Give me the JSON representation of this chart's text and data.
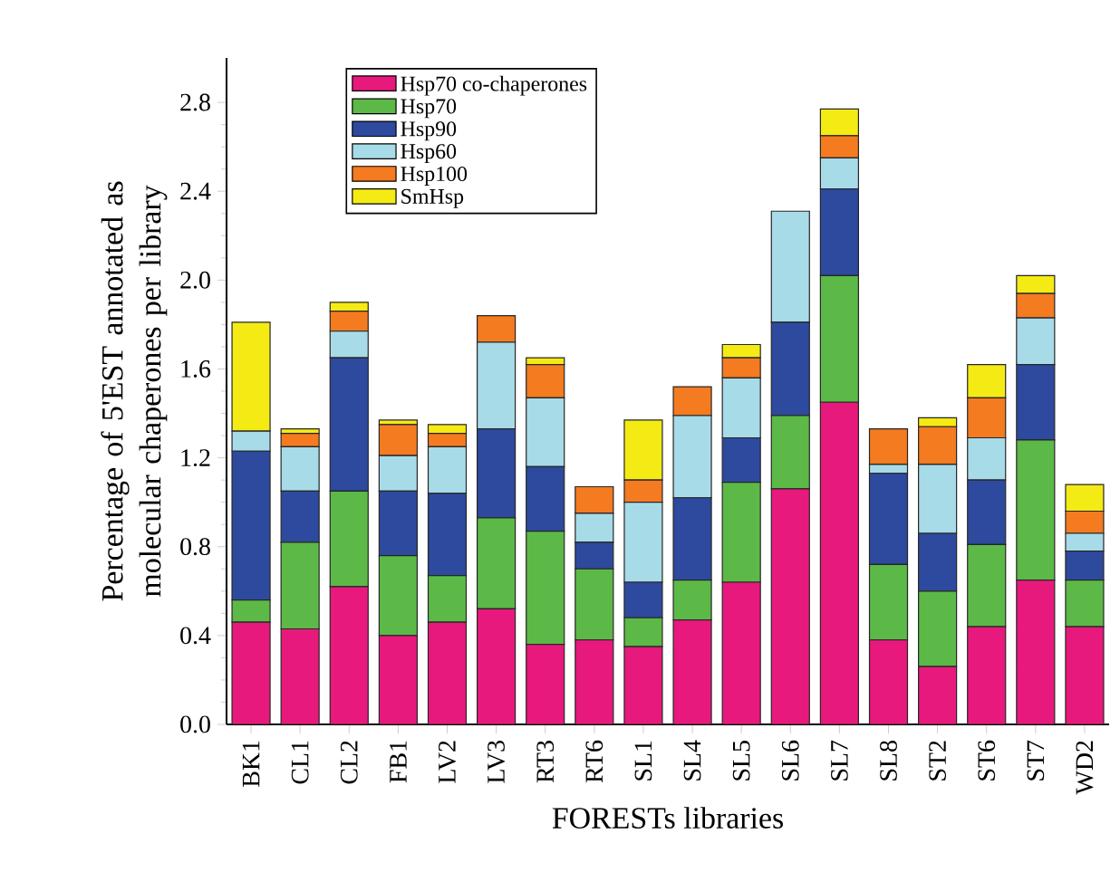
{
  "chart_data": {
    "type": "bar",
    "stacked": true,
    "xlabel": "FORESTs libraries",
    "ylabel": "Percentage of 5'EST annotated as molecular chaperones per library",
    "categories": [
      "BK1",
      "CL1",
      "CL2",
      "FB1",
      "LV2",
      "LV3",
      "RT3",
      "RT6",
      "SL1",
      "SL4",
      "SL5",
      "SL6",
      "SL7",
      "SL8",
      "ST2",
      "ST6",
      "ST7",
      "WD2"
    ],
    "series": [
      {
        "name": "Hsp70 co-chaperones",
        "color": "#e8197c",
        "values": [
          0.46,
          0.43,
          0.62,
          0.4,
          0.46,
          0.52,
          0.36,
          0.38,
          0.35,
          0.47,
          0.64,
          1.06,
          1.45,
          0.38,
          0.26,
          0.44,
          0.65,
          0.44
        ]
      },
      {
        "name": "Hsp70",
        "color": "#5cb947",
        "values": [
          0.1,
          0.39,
          0.43,
          0.36,
          0.21,
          0.41,
          0.51,
          0.32,
          0.13,
          0.18,
          0.45,
          0.33,
          0.57,
          0.34,
          0.34,
          0.37,
          0.63,
          0.21
        ]
      },
      {
        "name": "Hsp90",
        "color": "#2e4a9e",
        "values": [
          0.67,
          0.23,
          0.6,
          0.29,
          0.37,
          0.4,
          0.29,
          0.12,
          0.16,
          0.37,
          0.2,
          0.42,
          0.39,
          0.41,
          0.26,
          0.29,
          0.34,
          0.13
        ]
      },
      {
        "name": "Hsp60",
        "color": "#a8dbe8",
        "values": [
          0.09,
          0.2,
          0.12,
          0.16,
          0.21,
          0.39,
          0.31,
          0.13,
          0.36,
          0.37,
          0.27,
          0.5,
          0.14,
          0.04,
          0.31,
          0.19,
          0.21,
          0.08
        ]
      },
      {
        "name": "Hsp100",
        "color": "#f47b20",
        "values": [
          0,
          0.06,
          0.09,
          0.14,
          0.06,
          0.12,
          0.15,
          0.12,
          0.1,
          0.13,
          0.09,
          0,
          0.1,
          0.16,
          0.17,
          0.18,
          0.11,
          0.1
        ]
      },
      {
        "name": "SmHsp",
        "color": "#f5eb14",
        "values": [
          0.49,
          0.02,
          0.04,
          0.02,
          0.04,
          0,
          0.03,
          0,
          0.27,
          0,
          0.06,
          0,
          0.12,
          0,
          0.04,
          0.15,
          0.08,
          0.12
        ]
      }
    ],
    "ylim": [
      0,
      3.0
    ],
    "yticks": [
      {
        "value": 0,
        "label": "0.0"
      },
      {
        "value": 0.4,
        "label": "0.4"
      },
      {
        "value": 0.8,
        "label": "0.8"
      },
      {
        "value": 1.2,
        "label": "1.2"
      },
      {
        "value": 1.6,
        "label": "1.6"
      },
      {
        "value": 2.0,
        "label": "2.0"
      },
      {
        "value": 2.4,
        "label": "2.4"
      },
      {
        "value": 2.8,
        "label": "2.8"
      }
    ],
    "legend": "top left",
    "grid": false
  }
}
